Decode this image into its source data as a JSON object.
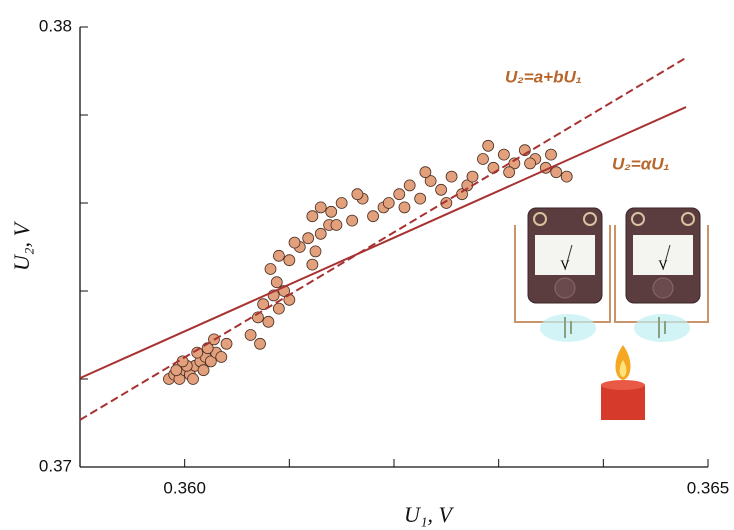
{
  "chart_data": {
    "type": "scatter",
    "x_label": "U₁, V",
    "y_label": "U₂, V",
    "xlim": [
      0.359,
      0.365
    ],
    "ylim": [
      0.37,
      0.38
    ],
    "xticks": [
      {
        "value": 0.36,
        "label": "0.360"
      },
      {
        "value": 0.365,
        "label": "0.365"
      }
    ],
    "xminorticks": [
      0.361,
      0.362,
      0.363,
      0.364
    ],
    "yticks": [
      0.37,
      0.38
    ],
    "yminorticks": [
      0.372,
      0.374,
      0.376,
      0.378
    ],
    "point_color": "#e3a07c",
    "point_edge": "#4a3024",
    "x": [
      0.35985,
      0.3599,
      0.35995,
      0.36,
      0.36005,
      0.3601,
      0.36015,
      0.3602,
      0.36025,
      0.3603,
      0.35992,
      0.36002,
      0.36012,
      0.36022,
      0.36035,
      0.3604,
      0.36008,
      0.36018,
      0.36028,
      0.35998,
      0.36063,
      0.3607,
      0.36075,
      0.3608,
      0.36085,
      0.3609,
      0.36095,
      0.361,
      0.36072,
      0.36088,
      0.36082,
      0.3609,
      0.361,
      0.3611,
      0.36118,
      0.36125,
      0.3613,
      0.36138,
      0.36105,
      0.36122,
      0.36122,
      0.3613,
      0.3614,
      0.3615,
      0.3616,
      0.3617,
      0.3618,
      0.3619,
      0.36145,
      0.36165,
      0.36195,
      0.36205,
      0.36215,
      0.36225,
      0.36235,
      0.36245,
      0.36255,
      0.36265,
      0.3621,
      0.3623,
      0.3625,
      0.3627,
      0.36275,
      0.36285,
      0.36295,
      0.36305,
      0.36315,
      0.36325,
      0.36335,
      0.36345,
      0.36355,
      0.36365,
      0.3629,
      0.3631,
      0.3633,
      0.3635
    ],
    "y": [
      0.372,
      0.3721,
      0.372,
      0.3722,
      0.3721,
      0.3723,
      0.3724,
      0.3725,
      0.3724,
      0.3726,
      0.3722,
      0.3723,
      0.3726,
      0.3727,
      0.3725,
      0.3728,
      0.372,
      0.3722,
      0.3729,
      0.3724,
      0.373,
      0.3734,
      0.3737,
      0.3733,
      0.3739,
      0.3736,
      0.374,
      0.3738,
      0.3728,
      0.3742,
      0.3745,
      0.3748,
      0.3747,
      0.375,
      0.3752,
      0.3749,
      0.3753,
      0.3755,
      0.3751,
      0.3746,
      0.3757,
      0.3759,
      0.3758,
      0.376,
      0.3756,
      0.3761,
      0.3757,
      0.3759,
      0.3755,
      0.3762,
      0.376,
      0.3762,
      0.3764,
      0.3761,
      0.3765,
      0.3763,
      0.3766,
      0.3762,
      0.3759,
      0.3767,
      0.376,
      0.3764,
      0.3766,
      0.377,
      0.3768,
      0.3771,
      0.3769,
      0.3772,
      0.377,
      0.3768,
      0.3767,
      0.3766,
      0.3773,
      0.3767,
      0.3769,
      0.3771
    ],
    "lines": [
      {
        "label": "U₂=a+bU₁",
        "dashed": true,
        "color": "#a83232",
        "x": [
          0.359,
          0.36479
        ],
        "y": [
          0.37107,
          0.3793
        ]
      },
      {
        "label": "U₂=αU₁",
        "dashed": false,
        "color": "#a83232",
        "x": [
          0.359,
          0.36479
        ],
        "y": [
          0.37202,
          0.37818
        ]
      }
    ],
    "meter_unit": "V"
  }
}
